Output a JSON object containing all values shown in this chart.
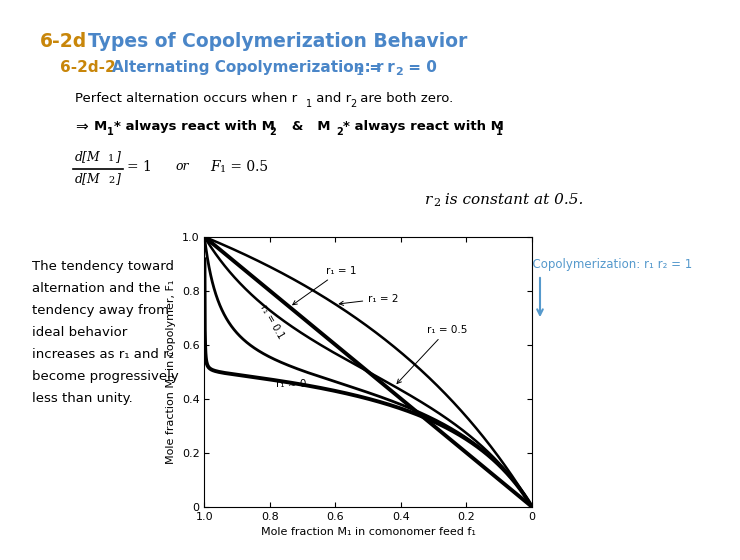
{
  "title_main_prefix": "6-2d",
  "title_main_prefix_color": "#C8860A",
  "title_main_rest": "   Types of Copolymerization Behavior",
  "title_main_rest_color": "#4A86C8",
  "subtitle_prefix": "6-2d-2",
  "subtitle_prefix_color": "#C8860A",
  "subtitle_rest": "   Alternating Copolymerization: r",
  "subtitle_rest_color": "#4A86C8",
  "bg_color": "#FFFFFF",
  "ideal_label": "Ideal Copolymerization: r₁ r₂ = 1",
  "ideal_label_color": "#5599CC",
  "curves": [
    {
      "r1": 0.001,
      "r2": 0.5,
      "lw": 2.8,
      "label": "r₁ ≈ 0"
    },
    {
      "r1": 0.1,
      "r2": 0.5,
      "lw": 2.0,
      "label": "r₁ = 0.1"
    },
    {
      "r1": 0.5,
      "r2": 0.5,
      "lw": 1.8,
      "label": "r₁ = 0.5"
    },
    {
      "r1": 1.0,
      "r2": 1.0,
      "lw": 2.8,
      "label": "r₁ = 1"
    },
    {
      "r1": 2.0,
      "r2": 0.5,
      "lw": 1.8,
      "label": "r₁ = 2"
    }
  ],
  "xlabel": "Mole fraction M₁ in comonomer feed f₁",
  "ylabel": "Mole fraction M₁ in copolymer, F₁"
}
